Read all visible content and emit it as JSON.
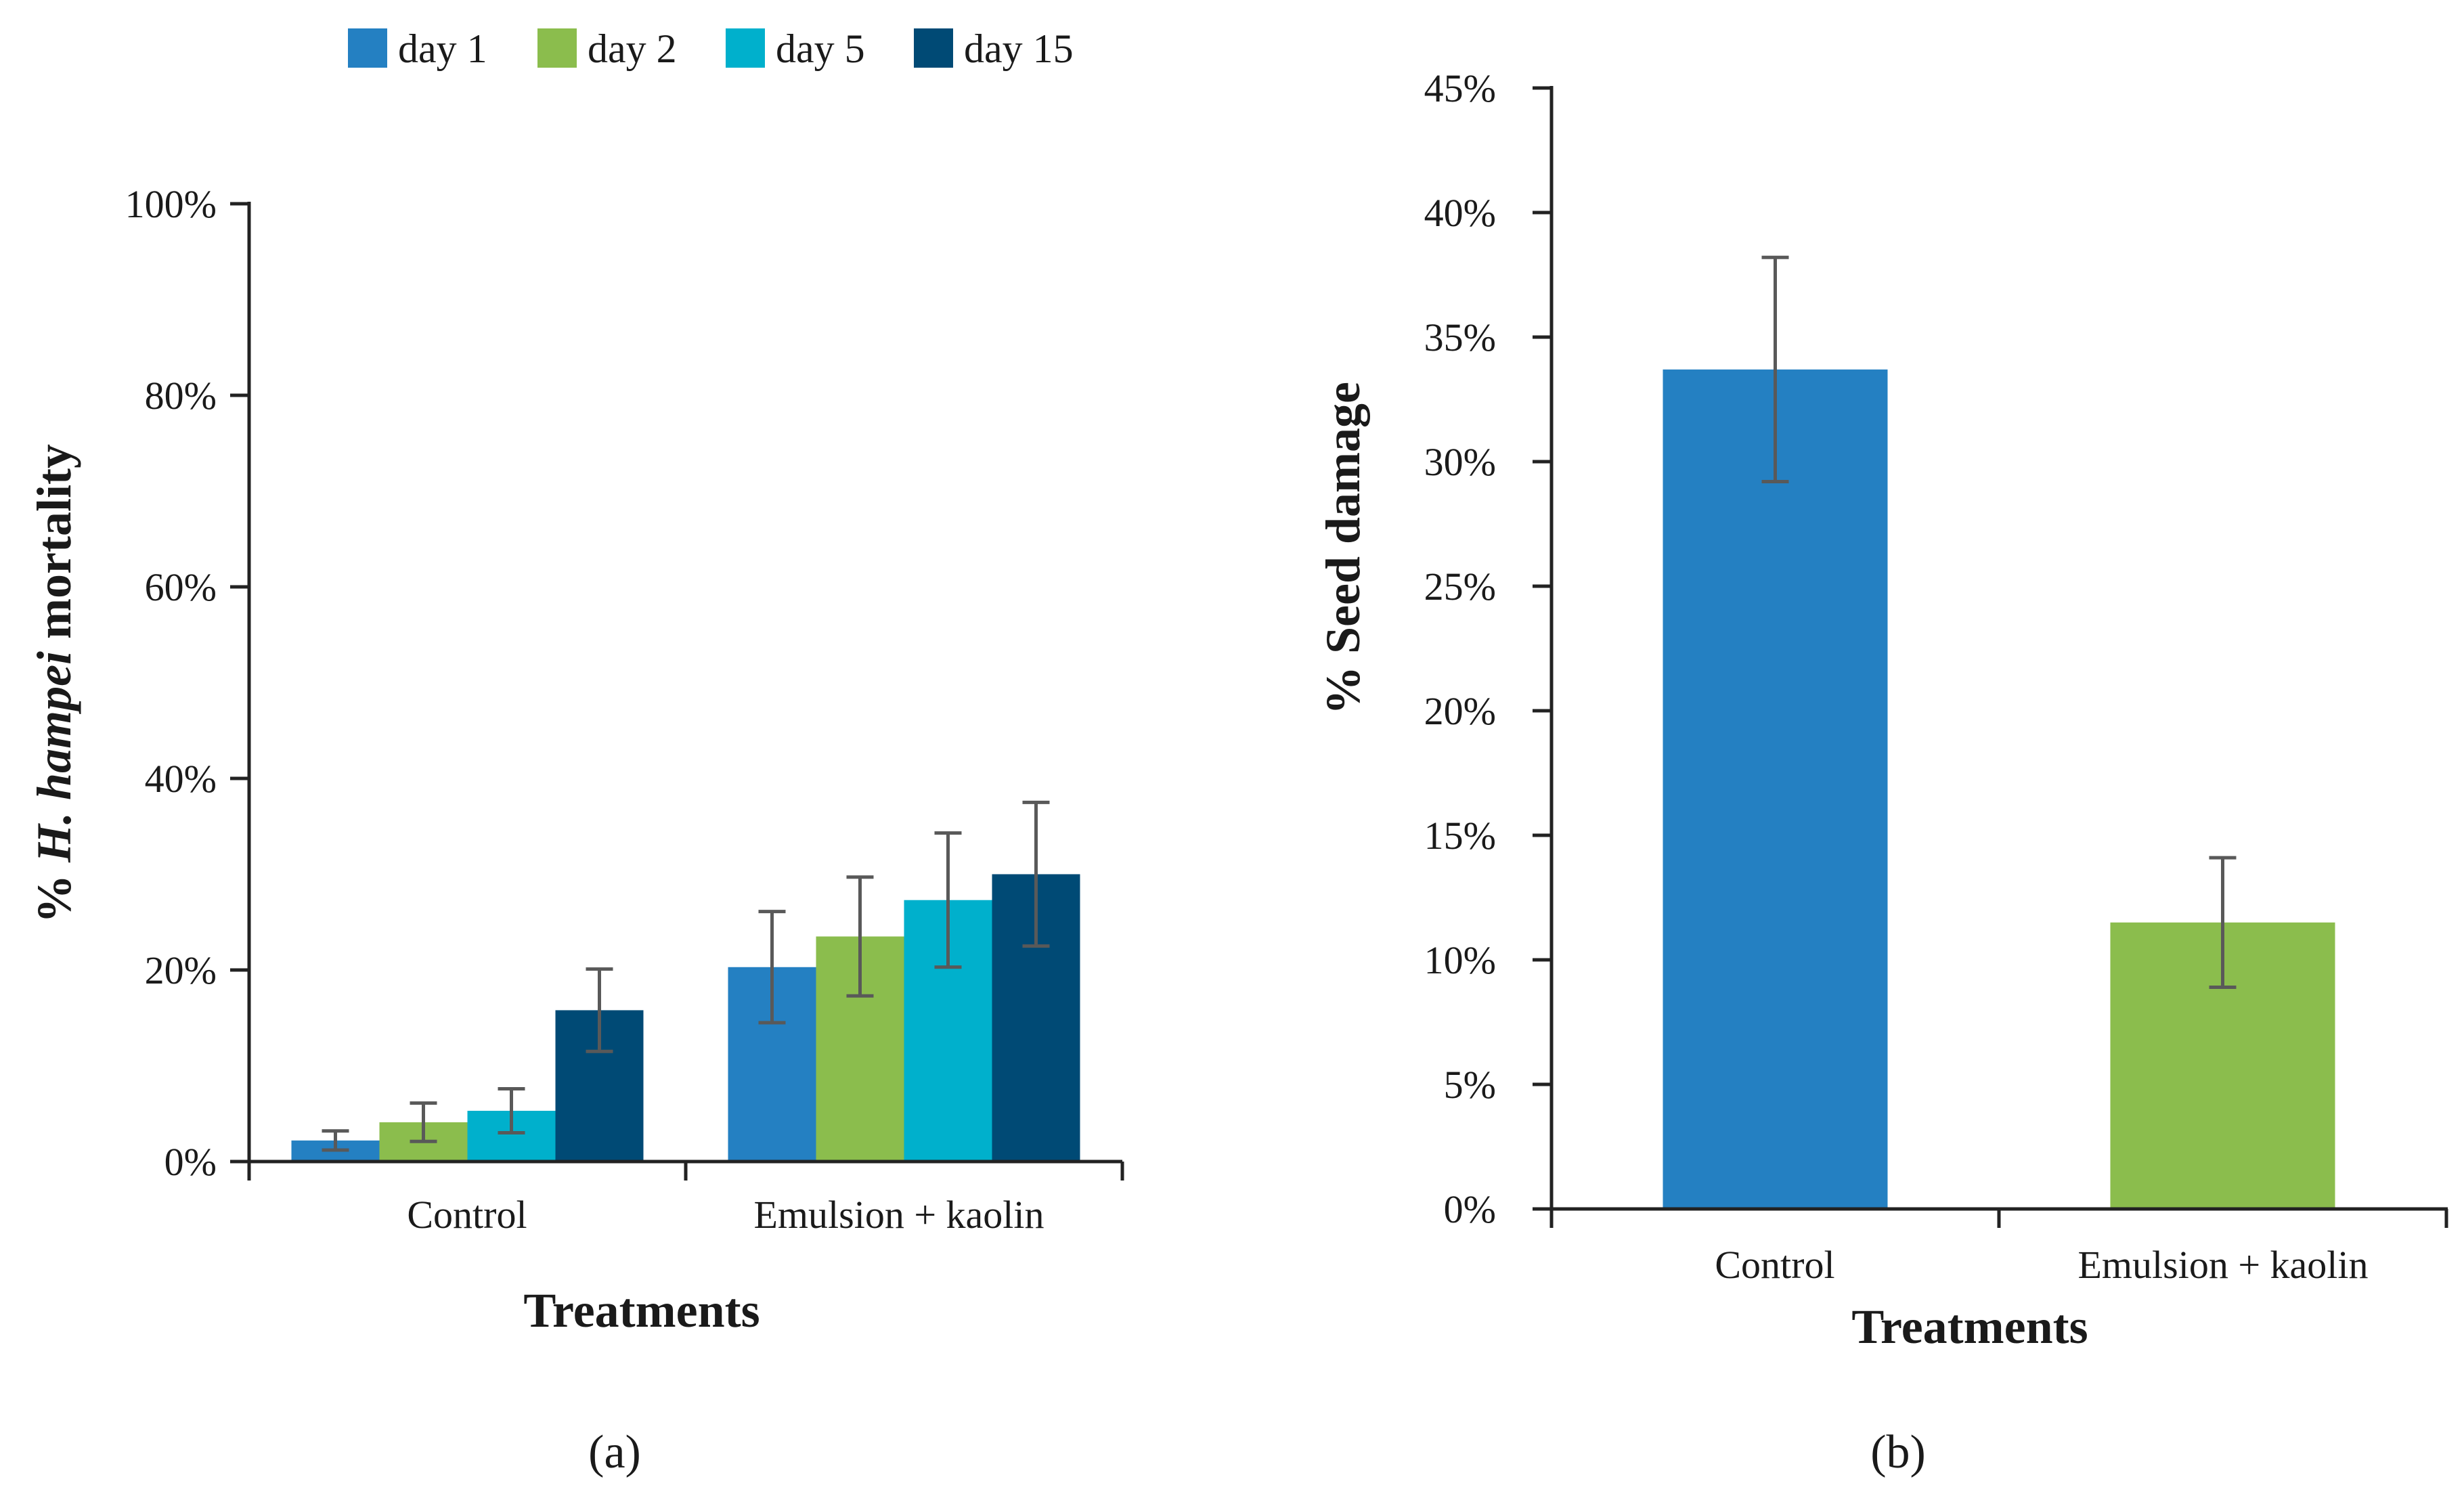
{
  "chart_data": [
    {
      "type": "bar",
      "panel_label": "(a)",
      "categories": [
        "Control",
        "Emulsion + kaolin"
      ],
      "series": [
        {
          "name": "day 1",
          "color": "#2480c2",
          "values": [
            0.022,
            0.203
          ],
          "errors": [
            0.01,
            0.058
          ]
        },
        {
          "name": "day 2",
          "color": "#8bbd4d",
          "values": [
            0.041,
            0.235
          ],
          "errors": [
            0.02,
            0.062
          ]
        },
        {
          "name": "day 5",
          "color": "#00b0cc",
          "values": [
            0.053,
            0.273
          ],
          "errors": [
            0.023,
            0.07
          ]
        },
        {
          "name": "day 15",
          "color": "#004a75",
          "values": [
            0.158,
            0.3
          ],
          "errors": [
            0.043,
            0.075
          ]
        }
      ],
      "ylim": [
        0,
        1.0
      ],
      "yticks": [
        "0%",
        "20%",
        "40%",
        "60%",
        "80%",
        "100%"
      ],
      "ylabel_prefix": "% ",
      "ylabel_italic": "H. hampei",
      "ylabel_suffix": " mortality",
      "xlabel": "Treatments",
      "legend_position": "top"
    },
    {
      "type": "bar",
      "panel_label": "(b)",
      "categories": [
        "Control",
        "Emulsion + kaolin"
      ],
      "values": [
        0.337,
        0.115
      ],
      "errors": [
        0.045,
        0.026
      ],
      "colors": [
        "#2480c2",
        "#8bbd4d"
      ],
      "ylim": [
        0,
        0.45
      ],
      "yticks": [
        "0%",
        "5%",
        "10%",
        "15%",
        "20%",
        "25%",
        "30%",
        "35%",
        "40%",
        "45%"
      ],
      "ylabel": "% Seed damage",
      "xlabel": "Treatments"
    }
  ]
}
